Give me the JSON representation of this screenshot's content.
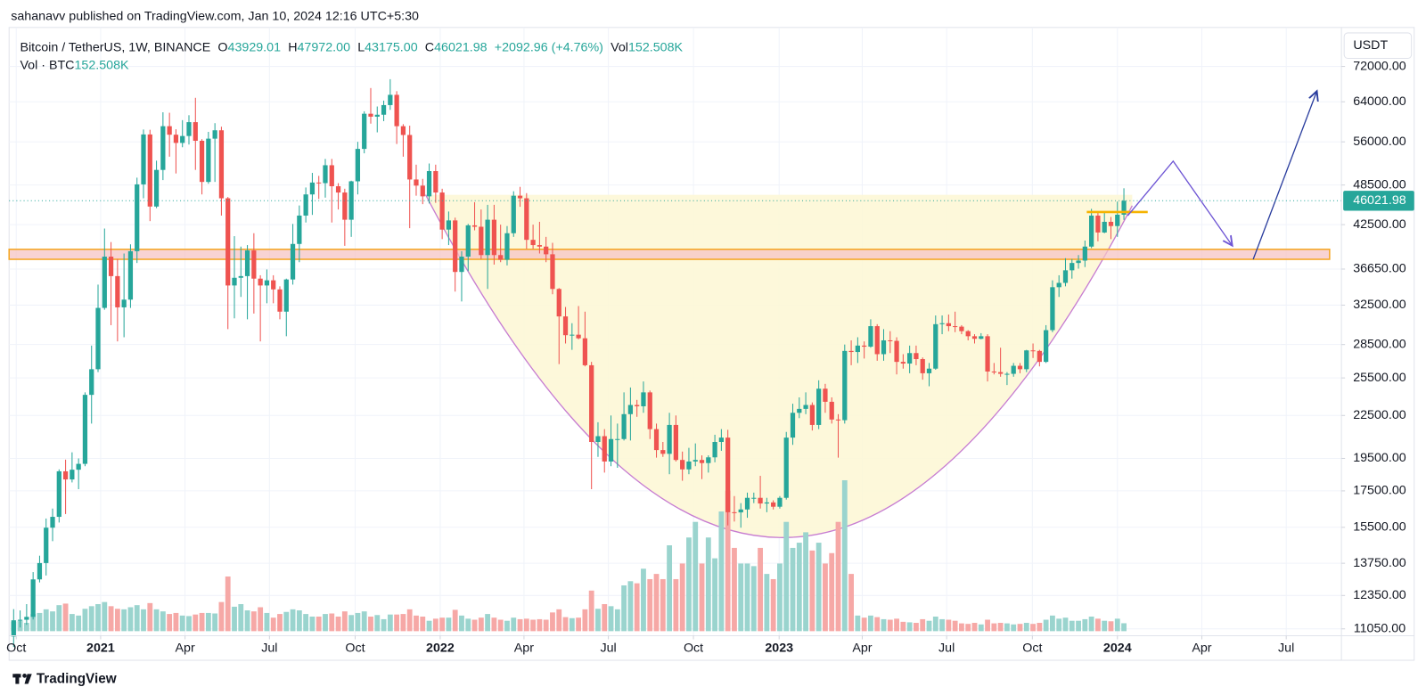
{
  "chart_data": {
    "type": "candlestick",
    "attribution": "sahanavv published on TradingView.com, Jan 10, 2024 12:16 UTC+5:30",
    "symbol": "Bitcoin / TetherUS, 1W, BINANCE",
    "ohlc_legend": [
      {
        "text": "O",
        "color": "#131722"
      },
      {
        "text": "43929.01",
        "color": "#26a69a"
      },
      {
        "text": "H",
        "color": "#131722"
      },
      {
        "text": "47972.00",
        "color": "#26a69a"
      },
      {
        "text": "L",
        "color": "#131722"
      },
      {
        "text": "43175.00",
        "color": "#26a69a"
      },
      {
        "text": "C",
        "color": "#131722"
      },
      {
        "text": "46021.98",
        "color": "#26a69a"
      },
      {
        "text": "+2092.96 (+4.76%)",
        "color": "#26a69a"
      },
      {
        "text": "Vol",
        "color": "#131722"
      },
      {
        "text": "152.508K",
        "color": "#26a69a"
      }
    ],
    "volume_legend": [
      {
        "text": "Vol · BTC",
        "color": "#131722"
      },
      {
        "text": "152.508K",
        "color": "#26a69a"
      }
    ],
    "currency": "USDT",
    "brand": "TradingView",
    "up_color": "#26a69a",
    "down_color": "#ef5350",
    "volume_up_color": "#9ad4ce",
    "volume_down_color": "#f6a8a6",
    "log_scale": true,
    "grid": true,
    "last_price": {
      "value": 46021.98,
      "label": "46021.98"
    },
    "xlim": [
      -0.7,
      204.5
    ],
    "xticks": [
      {
        "value": 0.4,
        "label": "Oct"
      },
      {
        "value": 13.4,
        "label": "2021"
      },
      {
        "value": 26.4,
        "label": "Apr"
      },
      {
        "value": 39.4,
        "label": "Jul"
      },
      {
        "value": 52.6,
        "label": "Oct"
      },
      {
        "value": 65.7,
        "label": "2022"
      },
      {
        "value": 78.6,
        "label": "Apr"
      },
      {
        "value": 91.6,
        "label": "Jul"
      },
      {
        "value": 104.7,
        "label": "Oct"
      },
      {
        "value": 117.9,
        "label": "2023"
      },
      {
        "value": 130.7,
        "label": "Apr"
      },
      {
        "value": 143.7,
        "label": "Jul"
      },
      {
        "value": 156.9,
        "label": "Oct"
      },
      {
        "value": 170,
        "label": "2024"
      },
      {
        "value": 183,
        "label": "Apr"
      },
      {
        "value": 196,
        "label": "Jul"
      }
    ],
    "ylim": [
      10800,
      81000
    ],
    "yticks": [
      {
        "value": 72000,
        "label": "72000.00"
      },
      {
        "value": 64000,
        "label": "64000.00"
      },
      {
        "value": 56000,
        "label": "56000.00"
      },
      {
        "value": 48500,
        "label": "48500.00"
      },
      {
        "value": 42500,
        "label": "42500.00"
      },
      {
        "value": 36650,
        "label": "36650.00"
      },
      {
        "value": 32500,
        "label": "32500.00"
      },
      {
        "value": 28500,
        "label": "28500.00"
      },
      {
        "value": 25500,
        "label": "25500.00"
      },
      {
        "value": 22500,
        "label": "22500.00"
      },
      {
        "value": 19500,
        "label": "19500.00"
      },
      {
        "value": 17500,
        "label": "17500.00"
      },
      {
        "value": 15500,
        "label": "15500.00"
      },
      {
        "value": 13750,
        "label": "13750.00"
      },
      {
        "value": 12350,
        "label": "12350.00"
      },
      {
        "value": 11050,
        "label": "11050.00"
      }
    ],
    "open": [
      10770,
      11370,
      11390,
      11500,
      13030,
      13760,
      15480,
      16050,
      18680,
      18180,
      18780,
      19150,
      24100,
      26250,
      32200,
      38200,
      35800,
      32260,
      33100,
      38900,
      48600,
      57400,
      45140,
      51000,
      59000,
      57350,
      55800,
      57100,
      59800,
      56200,
      49000,
      56600,
      58200,
      46400,
      34700,
      35600,
      35800,
      39000,
      35500,
      34700,
      35300,
      34250,
      31800,
      35400,
      39850,
      43800,
      47000,
      48900,
      48800,
      51800,
      48300,
      47300,
      43200,
      49100,
      54700,
      61500,
      60900,
      61300,
      63300,
      65500,
      59000,
      57300,
      49400,
      48400,
      46700,
      50800,
      47300,
      41800,
      43100,
      36300,
      38200,
      42400,
      42200,
      38400,
      43200,
      38400,
      37800,
      41300,
      46800,
      46400,
      40400,
      39700,
      39500,
      38500,
      34300,
      31300,
      29400,
      29450,
      29100,
      26600,
      20600,
      21000,
      19300,
      20800,
      20800,
      22600,
      23300,
      23200,
      24300,
      21500,
      20050,
      19800,
      21800,
      19400,
      18800,
      19300,
      19400,
      19200,
      19570,
      20600,
      20900,
      16300,
      16290,
      16450,
      17100,
      17100,
      16780,
      16840,
      16600,
      17100,
      20900,
      22700,
      23000,
      23300,
      21800,
      24600,
      23550,
      22200,
      22150,
      27900,
      27800,
      28400,
      28300,
      30300,
      27600,
      28900,
      28850,
      26900,
      26750,
      27700,
      27150,
      25900,
      26300,
      30500,
      30600,
      30300,
      30250,
      29800,
      29300,
      29050,
      29300,
      26050,
      26000,
      25850,
      25850,
      26550,
      26250,
      27950,
      27900,
      26900,
      29900,
      34500,
      35000,
      36500,
      37400,
      37700,
      39500,
      43800,
      41400,
      42900,
      42300,
      43929.01
    ],
    "high": [
      11800,
      11750,
      12000,
      13350,
      14100,
      15960,
      16500,
      18800,
      19420,
      19900,
      19500,
      24300,
      28400,
      34800,
      41950,
      40100,
      37900,
      38600,
      39800,
      49700,
      58350,
      58300,
      52600,
      61800,
      61700,
      58400,
      60200,
      61200,
      64850,
      56500,
      57900,
      59600,
      58900,
      46600,
      40900,
      39500,
      39700,
      41300,
      35900,
      36600,
      35900,
      34600,
      35500,
      42600,
      45300,
      48100,
      50500,
      50000,
      52900,
      52900,
      48800,
      47900,
      49200,
      56000,
      62000,
      67000,
      63000,
      64250,
      69000,
      66300,
      59400,
      59100,
      51900,
      49500,
      52100,
      51900,
      47900,
      44400,
      43500,
      38900,
      42600,
      45800,
      44700,
      45400,
      45400,
      42500,
      42300,
      47500,
      48200,
      47200,
      42500,
      42900,
      40800,
      40000,
      34400,
      32300,
      30600,
      32400,
      31800,
      26900,
      22000,
      21500,
      22500,
      21900,
      24300,
      24700,
      23700,
      25200,
      24450,
      21900,
      20600,
      22700,
      22500,
      19950,
      20200,
      20500,
      19700,
      19700,
      21100,
      21500,
      21450,
      17200,
      16800,
      17400,
      17400,
      18400,
      17100,
      16960,
      17200,
      21300,
      23400,
      23900,
      24300,
      23500,
      25300,
      25000,
      23900,
      22600,
      28500,
      28900,
      29200,
      28800,
      31000,
      30500,
      30000,
      29800,
      29200,
      27600,
      28400,
      28400,
      27300,
      26800,
      31400,
      31400,
      31500,
      31800,
      30400,
      29900,
      29500,
      29600,
      29500,
      26800,
      28200,
      26000,
      26800,
      26800,
      28000,
      28600,
      28000,
      30400,
      35300,
      35900,
      38000,
      37900,
      38400,
      40300,
      44800,
      44400,
      44400,
      43600,
      45900,
      47972
    ],
    "low": [
      10400,
      11100,
      11200,
      11400,
      12900,
      13200,
      14800,
      15750,
      16200,
      18000,
      17600,
      19000,
      21900,
      26000,
      32000,
      30400,
      28800,
      29200,
      32200,
      37400,
      46400,
      43000,
      44900,
      49300,
      53300,
      50400,
      55000,
      55500,
      51000,
      47000,
      48700,
      49000,
      43800,
      30000,
      31100,
      33400,
      31000,
      31600,
      28800,
      32700,
      32700,
      31000,
      29300,
      34800,
      37500,
      42800,
      43900,
      46300,
      46500,
      42800,
      44700,
      39600,
      40800,
      47000,
      53900,
      59500,
      57800,
      60000,
      62300,
      55600,
      53300,
      42000,
      46800,
      45500,
      45600,
      45700,
      40500,
      39700,
      34000,
      32900,
      36400,
      41700,
      37900,
      34300,
      37200,
      37500,
      37100,
      40800,
      45100,
      39200,
      39200,
      38600,
      37500,
      33700,
      26700,
      28600,
      28000,
      29000,
      26500,
      17600,
      19600,
      18600,
      19000,
      18900,
      20700,
      20700,
      22400,
      22700,
      20800,
      19550,
      19600,
      18500,
      19300,
      18100,
      18500,
      19000,
      18200,
      18600,
      19250,
      20000,
      15600,
      15800,
      15480,
      16000,
      16800,
      16500,
      16300,
      16450,
      16500,
      17000,
      20400,
      22300,
      22600,
      21400,
      21500,
      22700,
      21900,
      19550,
      21900,
      26600,
      26800,
      27200,
      28200,
      27000,
      27000,
      27700,
      25800,
      26300,
      25900,
      26600,
      25350,
      24800,
      26200,
      29500,
      29800,
      29700,
      29500,
      28900,
      28600,
      29000,
      25200,
      25800,
      25600,
      24900,
      25600,
      25900,
      26000,
      27250,
      26500,
      26800,
      29700,
      33400,
      34600,
      35500,
      36700,
      36900,
      39300,
      40200,
      41300,
      40500,
      40800,
      43175
    ],
    "close": [
      11370,
      11390,
      11500,
      13030,
      13760,
      15480,
      16050,
      18680,
      18180,
      18780,
      19150,
      24100,
      26250,
      32200,
      38200,
      35800,
      32260,
      33100,
      38900,
      48600,
      57400,
      45140,
      51000,
      59000,
      57350,
      55800,
      57100,
      59800,
      56200,
      49000,
      56600,
      58200,
      46400,
      34700,
      35600,
      35800,
      39000,
      35500,
      34700,
      35300,
      34250,
      31800,
      35400,
      39850,
      43800,
      47000,
      48900,
      48800,
      51800,
      48300,
      47300,
      43200,
      49100,
      54700,
      61500,
      60900,
      61300,
      63300,
      65500,
      59000,
      57300,
      49400,
      48400,
      46700,
      50800,
      47300,
      41800,
      43100,
      36300,
      38200,
      42400,
      42200,
      38400,
      43200,
      38400,
      37800,
      41300,
      46800,
      46400,
      40400,
      39700,
      39500,
      38500,
      34300,
      31300,
      29400,
      29450,
      29100,
      26600,
      20600,
      21000,
      19300,
      20800,
      20800,
      22600,
      23300,
      23200,
      24300,
      21500,
      20050,
      19800,
      21800,
      19400,
      18800,
      19300,
      19400,
      19200,
      19570,
      20600,
      20900,
      16300,
      16290,
      16450,
      17100,
      17100,
      16780,
      16840,
      16600,
      17100,
      20900,
      22700,
      23000,
      23300,
      21800,
      24600,
      23550,
      22200,
      22150,
      27900,
      27800,
      28400,
      28300,
      30300,
      27600,
      28900,
      28850,
      26900,
      26750,
      27700,
      27150,
      25900,
      26300,
      30500,
      30600,
      30300,
      30250,
      29800,
      29300,
      29050,
      29300,
      26050,
      26000,
      25850,
      25850,
      26550,
      26250,
      27950,
      27900,
      26900,
      29900,
      34500,
      35000,
      36500,
      37400,
      37700,
      39500,
      43800,
      41400,
      42900,
      42300,
      43929.01,
      46021.98
    ],
    "volume": [
      180000,
      200000,
      160000,
      330000,
      350000,
      420000,
      380000,
      500000,
      530000,
      330000,
      300000,
      430000,
      480000,
      520000,
      560000,
      480000,
      430000,
      420000,
      460000,
      500000,
      420000,
      540000,
      420000,
      380000,
      330000,
      350000,
      300000,
      290000,
      320000,
      350000,
      350000,
      340000,
      560000,
      1050000,
      470000,
      520000,
      400000,
      380000,
      460000,
      350000,
      260000,
      330000,
      370000,
      420000,
      400000,
      330000,
      280000,
      280000,
      330000,
      340000,
      280000,
      380000,
      310000,
      350000,
      380000,
      280000,
      310000,
      230000,
      320000,
      320000,
      330000,
      420000,
      300000,
      280000,
      200000,
      240000,
      260000,
      260000,
      410000,
      300000,
      240000,
      220000,
      260000,
      330000,
      260000,
      220000,
      200000,
      260000,
      230000,
      240000,
      220000,
      230000,
      220000,
      360000,
      420000,
      270000,
      250000,
      260000,
      420000,
      780000,
      430000,
      520000,
      480000,
      420000,
      880000,
      960000,
      920000,
      1200000,
      1000000,
      1100000,
      1000000,
      1650000,
      1000000,
      1300000,
      1800000,
      2100000,
      1300000,
      1800000,
      1400000,
      2300000,
      2700000,
      1600000,
      1300000,
      1300000,
      1250000,
      1600000,
      1100000,
      1000000,
      1300000,
      2100000,
      1600000,
      1700000,
      1900000,
      1550000,
      1700000,
      1300000,
      1500000,
      2100000,
      2900000,
      1100000,
      300000,
      260000,
      300000,
      270000,
      230000,
      220000,
      240000,
      180000,
      170000,
      160000,
      230000,
      200000,
      280000,
      230000,
      220000,
      200000,
      150000,
      140000,
      160000,
      130000,
      220000,
      150000,
      160000,
      150000,
      130000,
      140000,
      160000,
      140000,
      160000,
      220000,
      300000,
      240000,
      260000,
      200000,
      200000,
      230000,
      280000,
      240000,
      200000,
      190000,
      240000,
      152508
    ]
  }
}
